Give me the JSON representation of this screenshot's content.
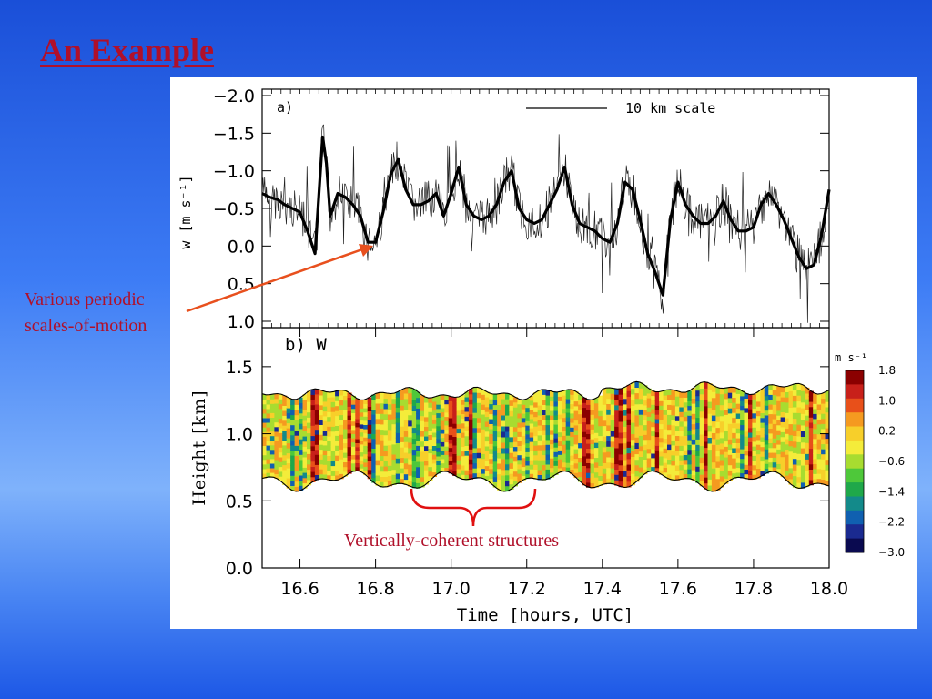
{
  "slide": {
    "title": "An Example",
    "annotation_periodic": "Various periodic scales-of-motion",
    "annotation_coherent": "Vertically-coherent structures"
  },
  "colors": {
    "title": "#b0102a",
    "annotation": "#b0102a",
    "arrow": "#e8501e",
    "brace": "#e01010"
  },
  "chart_data": [
    {
      "type": "line",
      "panel_label": "a)",
      "ylabel": "w [m s⁻¹]",
      "y_tick_labels": [
        "−2.0",
        "−1.5",
        "−1.0",
        "−0.5",
        "0.0",
        "0.5",
        "1.0"
      ],
      "y_ticks": [
        -2.0,
        -1.5,
        -1.0,
        -0.5,
        0.0,
        0.5,
        1.0
      ],
      "ylim": [
        -2.0,
        1.0
      ],
      "y_inverted": true,
      "xlim": [
        16.5,
        18.0
      ],
      "scale_bar_label": "10 km scale",
      "series": [
        {
          "style": "thick-smoothed",
          "x": [
            16.5,
            16.52,
            16.54,
            16.56,
            16.58,
            16.6,
            16.62,
            16.64,
            16.66,
            16.67,
            16.68,
            16.7,
            16.72,
            16.74,
            16.76,
            16.78,
            16.8,
            16.82,
            16.84,
            16.86,
            16.88,
            16.9,
            16.92,
            16.94,
            16.96,
            16.98,
            17.0,
            17.02,
            17.04,
            17.06,
            17.08,
            17.1,
            17.12,
            17.14,
            17.16,
            17.18,
            17.2,
            17.22,
            17.24,
            17.26,
            17.28,
            17.3,
            17.32,
            17.34,
            17.36,
            17.38,
            17.4,
            17.42,
            17.44,
            17.46,
            17.48,
            17.5,
            17.52,
            17.54,
            17.56,
            17.58,
            17.6,
            17.62,
            17.64,
            17.66,
            17.68,
            17.7,
            17.72,
            17.74,
            17.76,
            17.78,
            17.8,
            17.82,
            17.84,
            17.86,
            17.88,
            17.9,
            17.92,
            17.94,
            17.96,
            17.98,
            18.0
          ],
          "y": [
            -0.7,
            -0.65,
            -0.62,
            -0.55,
            -0.5,
            -0.45,
            -0.2,
            0.1,
            -1.45,
            -1.1,
            -0.4,
            -0.7,
            -0.65,
            -0.55,
            -0.4,
            -0.05,
            -0.05,
            -0.45,
            -0.95,
            -1.15,
            -0.75,
            -0.55,
            -0.55,
            -0.6,
            -0.7,
            -0.4,
            -0.7,
            -1.05,
            -0.55,
            -0.4,
            -0.35,
            -0.4,
            -0.55,
            -0.85,
            -1.0,
            -0.5,
            -0.35,
            -0.3,
            -0.35,
            -0.55,
            -0.75,
            -1.05,
            -0.55,
            -0.3,
            -0.25,
            -0.2,
            -0.1,
            -0.05,
            -0.3,
            -0.85,
            -0.75,
            -0.35,
            0.1,
            0.35,
            0.65,
            -0.35,
            -0.85,
            -0.55,
            -0.4,
            -0.3,
            -0.3,
            -0.4,
            -0.6,
            -0.35,
            -0.2,
            -0.2,
            -0.25,
            -0.55,
            -0.7,
            -0.55,
            -0.35,
            -0.1,
            0.15,
            0.3,
            0.25,
            -0.15,
            -0.75
          ]
        }
      ]
    },
    {
      "type": "heatmap",
      "panel_label": "b) W",
      "ylabel": "Height [km]",
      "xlabel": "Time [hours, UTC]",
      "x_tick_labels": [
        "16.6",
        "16.8",
        "17.0",
        "17.2",
        "17.4",
        "17.6",
        "17.8",
        "18.0"
      ],
      "x_ticks": [
        16.6,
        16.8,
        17.0,
        17.2,
        17.4,
        17.6,
        17.8,
        18.0
      ],
      "xlim": [
        16.5,
        18.0
      ],
      "y_tick_labels": [
        "0.0",
        "0.5",
        "1.0",
        "1.5"
      ],
      "y_ticks": [
        0.0,
        0.5,
        1.0,
        1.5
      ],
      "ylim": [
        0.0,
        1.75
      ],
      "layer_top_km": 1.3,
      "layer_bottom_km": 0.65,
      "colorbar": {
        "unit_label": "m s⁻¹",
        "tick_labels": [
          "1.8",
          "1.0",
          "0.2",
          "−0.6",
          "−1.4",
          "−2.2",
          "−3.0"
        ],
        "ticks": [
          1.8,
          1.0,
          0.2,
          -0.6,
          -1.4,
          -2.2,
          -3.0
        ],
        "range": [
          -3.0,
          1.8
        ],
        "colors": [
          "#8b0000",
          "#c8201a",
          "#e8501a",
          "#f59a20",
          "#f7cf2a",
          "#f4ec3a",
          "#a8dc30",
          "#4ec83a",
          "#1fa84a",
          "#138a8a",
          "#1060b0",
          "#1a2a90",
          "#0a0a50"
        ]
      }
    }
  ]
}
